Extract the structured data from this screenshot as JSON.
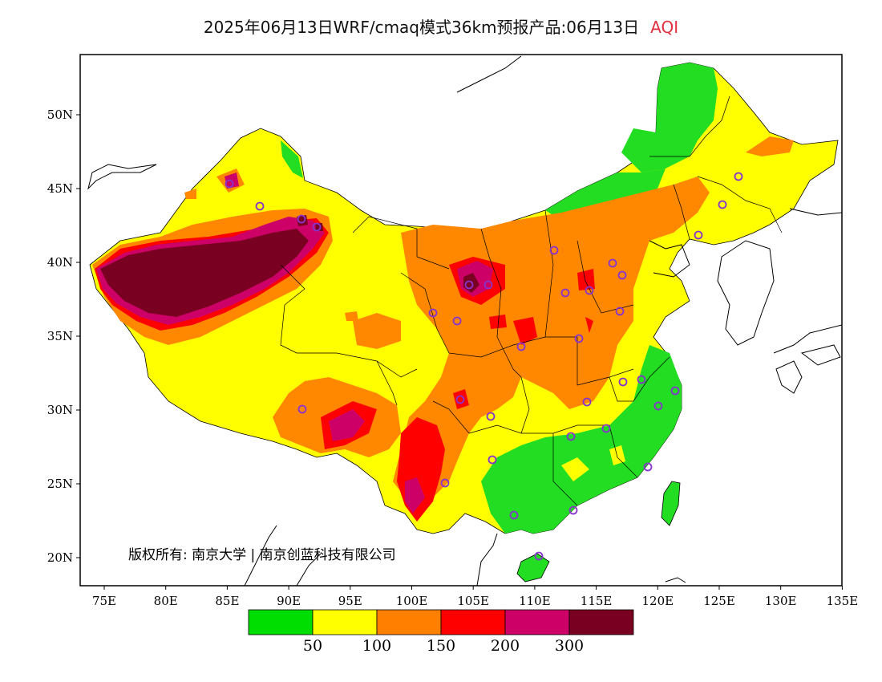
{
  "title": {
    "main": "2025年06月13日WRF/cmaq模式36km预报产品:06月13日",
    "variable": "AQI"
  },
  "axes": {
    "x_ticks": [
      "75E",
      "80E",
      "85E",
      "90E",
      "95E",
      "100E",
      "105E",
      "110E",
      "115E",
      "120E",
      "125E",
      "130E",
      "135E"
    ],
    "y_ticks": [
      "50N",
      "45N",
      "40N",
      "35N",
      "30N",
      "25N",
      "20N"
    ]
  },
  "copyright": "版权所有: 南京大学 | 南京创蓝科技有限公司",
  "legend": {
    "colors": [
      "#00dd00",
      "#ffff00",
      "#ff8000",
      "#ff0000",
      "#cc0066",
      "#7a0022"
    ],
    "labels": [
      "50",
      "100",
      "150",
      "200",
      "300"
    ]
  },
  "colors": {
    "good": "#22dd22",
    "moderate": "#ffff00",
    "unhealthy_sensitive": "#ff8800",
    "unhealthy": "#ff0000",
    "very_unhealthy": "#cc0066",
    "hazardous": "#7a0022",
    "station_marker": "#8833cc"
  }
}
